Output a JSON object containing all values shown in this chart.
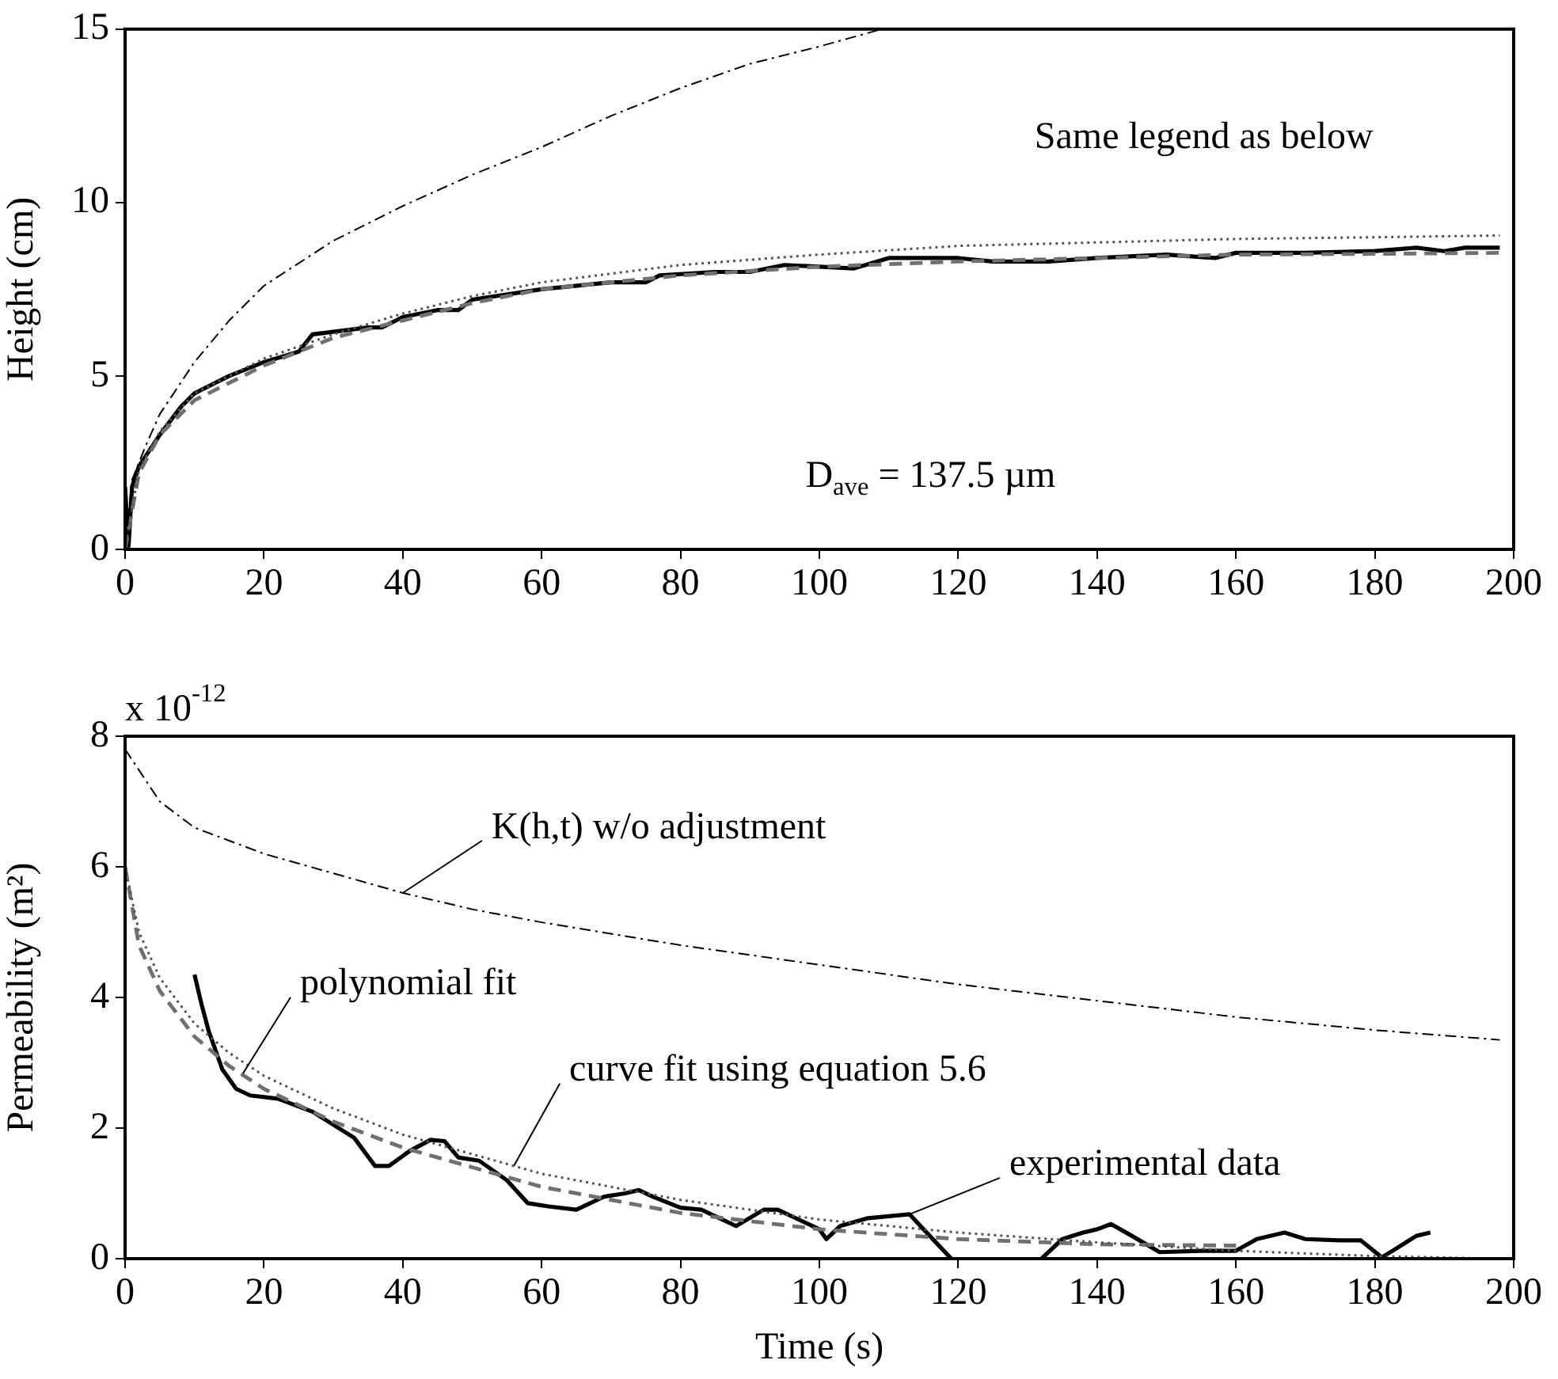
{
  "chart_data": [
    {
      "type": "line",
      "ylabel": "Height (cm)",
      "xlim": [
        0,
        200
      ],
      "xticks": [
        0,
        20,
        40,
        60,
        80,
        100,
        120,
        140,
        160,
        180,
        200
      ],
      "ylim": [
        0,
        15
      ],
      "yticks": [
        0,
        5,
        10,
        15
      ],
      "grid": false,
      "legend": false,
      "marker": "none",
      "annotations": [
        "Same legend as below",
        "D$_{ave}$ = 137.5 µm"
      ],
      "series": [
        {
          "color": "#000000",
          "line_style": "dashdot",
          "x": [
            0,
            1,
            3,
            5,
            10,
            15,
            20,
            30,
            40,
            50,
            60,
            70,
            80,
            90,
            100,
            109
          ],
          "values": [
            0,
            2.0,
            3.0,
            3.9,
            5.4,
            6.6,
            7.6,
            8.9,
            9.9,
            10.8,
            11.6,
            12.5,
            13.3,
            14.0,
            14.5,
            15.0
          ]
        },
        {
          "color": "#555555",
          "line_style": "dotted",
          "x": [
            0,
            2,
            5,
            10,
            20,
            30,
            40,
            50,
            60,
            80,
            100,
            120,
            140,
            160,
            180,
            198
          ],
          "values": [
            0,
            2.3,
            3.4,
            4.5,
            5.5,
            6.2,
            6.8,
            7.3,
            7.7,
            8.2,
            8.5,
            8.75,
            8.85,
            8.95,
            9.0,
            9.05
          ]
        },
        {
          "color": "#707070",
          "line_style": "dashed",
          "x": [
            0,
            2,
            5,
            10,
            20,
            30,
            40,
            50,
            60,
            80,
            100,
            120,
            140,
            160,
            180,
            198
          ],
          "values": [
            0,
            2.2,
            3.3,
            4.3,
            5.3,
            6.1,
            6.6,
            7.1,
            7.5,
            7.9,
            8.15,
            8.3,
            8.4,
            8.5,
            8.52,
            8.55
          ]
        },
        {
          "color": "#000000",
          "line_style": "solid",
          "x": [
            0,
            0.5,
            1,
            2,
            5,
            8,
            10,
            15,
            20,
            25,
            27,
            35,
            37,
            40,
            45,
            48,
            50,
            60,
            70,
            75,
            77,
            85,
            90,
            95,
            100,
            105,
            110,
            120,
            125,
            133,
            140,
            150,
            157,
            160,
            170,
            180,
            186,
            190,
            193,
            198
          ],
          "values": [
            1.8,
            0.1,
            1.8,
            2.4,
            3.3,
            4.1,
            4.5,
            5.0,
            5.4,
            5.7,
            6.2,
            6.4,
            6.4,
            6.7,
            6.9,
            6.9,
            7.2,
            7.5,
            7.7,
            7.7,
            7.9,
            8.0,
            8.0,
            8.2,
            8.15,
            8.1,
            8.4,
            8.4,
            8.3,
            8.3,
            8.4,
            8.5,
            8.4,
            8.55,
            8.55,
            8.6,
            8.7,
            8.6,
            8.7,
            8.7
          ]
        }
      ]
    },
    {
      "type": "line",
      "xlabel": "Time (s)",
      "ylabel": "Permeability (m²)",
      "xlim": [
        0,
        200
      ],
      "xticks": [
        0,
        20,
        40,
        60,
        80,
        100,
        120,
        140,
        160,
        180,
        200
      ],
      "ylim": [
        0,
        8
      ],
      "yticks": [
        0,
        2,
        4,
        6,
        8
      ],
      "grid": false,
      "legend": false,
      "marker": "none",
      "annotations": [
        "x 10$^{-12}$",
        {
          "text": "K(h,t) w/o adjustment",
          "x": 40,
          "y": 5.6
        },
        {
          "text": "polynomial fit",
          "x": 17,
          "y": 2.84
        },
        {
          "text": "curve fit using equation 5.6",
          "x": 56,
          "y": 1.42
        },
        {
          "text": "experimental data",
          "x": 113,
          "y": 0.68
        }
      ],
      "series": [
        {
          "color": "#000000",
          "line_style": "dashdot",
          "x": [
            0,
            5,
            10,
            20,
            30,
            40,
            50,
            60,
            80,
            100,
            120,
            140,
            160,
            180,
            198
          ],
          "values": [
            7.8,
            7.0,
            6.6,
            6.2,
            5.9,
            5.6,
            5.35,
            5.15,
            4.8,
            4.5,
            4.2,
            3.95,
            3.7,
            3.5,
            3.35
          ]
        },
        {
          "color": "#555555",
          "line_style": "dotted",
          "x": [
            0,
            2,
            5,
            10,
            15,
            20,
            30,
            40,
            50,
            60,
            80,
            100,
            120,
            140,
            160,
            180,
            198
          ],
          "values": [
            6.0,
            5.0,
            4.3,
            3.6,
            3.15,
            2.8,
            2.3,
            1.9,
            1.6,
            1.3,
            0.9,
            0.6,
            0.4,
            0.25,
            0.12,
            0.04,
            0.0
          ]
        },
        {
          "color": "#707070",
          "line_style": "dashed",
          "x": [
            0,
            2,
            5,
            10,
            15,
            20,
            30,
            40,
            50,
            60,
            80,
            100,
            120,
            140,
            160
          ],
          "values": [
            6.0,
            4.8,
            4.1,
            3.4,
            2.95,
            2.6,
            2.1,
            1.7,
            1.4,
            1.1,
            0.7,
            0.45,
            0.3,
            0.22,
            0.2
          ]
        },
        {
          "color": "#000000",
          "line_style": "solid",
          "x": [
            10,
            11,
            12,
            14,
            16,
            18,
            22,
            27,
            30,
            33,
            36,
            38,
            41,
            44,
            46,
            48,
            51,
            55,
            58,
            61,
            65,
            69,
            72,
            74,
            76,
            80,
            83,
            85,
            88,
            92,
            94,
            97,
            100,
            101,
            103,
            107,
            110,
            113,
            115,
            119,
            125,
            132,
            135,
            138,
            140,
            142,
            145,
            149,
            155,
            160,
            163,
            167,
            170,
            175,
            178,
            181,
            183,
            186,
            188
          ],
          "values": [
            4.35,
            3.9,
            3.5,
            2.9,
            2.6,
            2.5,
            2.45,
            2.25,
            2.05,
            1.85,
            1.42,
            1.42,
            1.65,
            1.82,
            1.8,
            1.55,
            1.5,
            1.2,
            0.85,
            0.8,
            0.75,
            0.95,
            1.0,
            1.05,
            0.95,
            0.78,
            0.75,
            0.65,
            0.5,
            0.75,
            0.75,
            0.6,
            0.45,
            0.3,
            0.5,
            0.62,
            0.65,
            0.68,
            0.45,
            0.0,
            null,
            0.0,
            0.3,
            0.4,
            0.45,
            0.53,
            0.35,
            0.1,
            0.12,
            0.12,
            0.3,
            0.4,
            0.3,
            0.28,
            0.28,
            0.02,
            0.15,
            0.35,
            0.4
          ]
        }
      ]
    }
  ]
}
